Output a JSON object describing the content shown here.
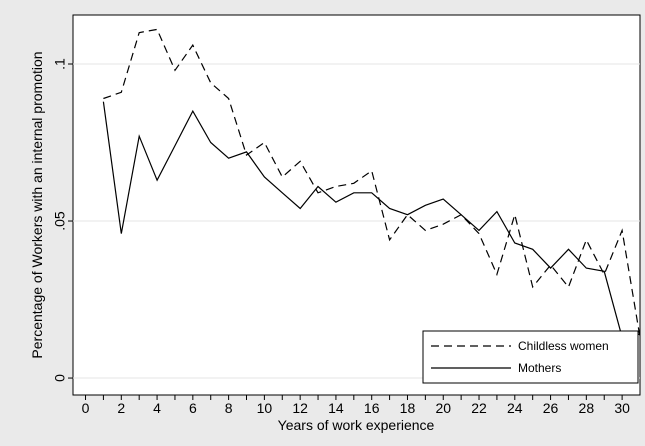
{
  "chart_data": {
    "type": "line",
    "x_label": "Years of work experience",
    "y_label": "Percentage of Workers with an internal promotion",
    "x": [
      1,
      2,
      3,
      4,
      5,
      6,
      7,
      8,
      9,
      10,
      11,
      12,
      13,
      14,
      15,
      16,
      17,
      18,
      19,
      20,
      21,
      22,
      23,
      24,
      25,
      26,
      27,
      28,
      29,
      30,
      31
    ],
    "series": [
      {
        "name": "Childless women",
        "color": "#000000",
        "dash": "dashed",
        "values": [
          0.089,
          0.091,
          0.11,
          0.111,
          0.098,
          0.106,
          0.094,
          0.089,
          0.071,
          0.075,
          0.064,
          0.069,
          0.059,
          0.061,
          0.062,
          0.066,
          0.044,
          0.052,
          0.047,
          0.049,
          0.052,
          0.046,
          0.033,
          0.052,
          0.029,
          0.036,
          0.029,
          0.044,
          0.033,
          0.047,
          0.013
        ]
      },
      {
        "name": "Mothers",
        "color": "#000000",
        "dash": "solid",
        "values": [
          0.088,
          0.046,
          0.077,
          0.063,
          0.074,
          0.085,
          0.075,
          0.07,
          0.072,
          0.064,
          0.059,
          0.054,
          0.061,
          0.056,
          0.059,
          0.059,
          0.054,
          0.052,
          0.055,
          0.057,
          0.052,
          0.047,
          0.053,
          0.043,
          0.041,
          0.035,
          0.041,
          0.035,
          0.034,
          0.013,
          0.014
        ]
      }
    ],
    "xlim": [
      -0.7,
      31
    ],
    "ylim": [
      -0.0054,
      0.1156
    ],
    "xticks": [
      0,
      2,
      4,
      6,
      8,
      10,
      12,
      14,
      16,
      18,
      20,
      22,
      24,
      26,
      28,
      30
    ],
    "xminorticks": [
      1,
      3,
      5,
      7,
      9,
      11,
      13,
      15,
      17,
      19,
      21,
      23,
      25,
      27,
      29
    ],
    "yticks": [
      0,
      {
        "value": 0.05,
        "label": ".05"
      },
      {
        "value": 0.1,
        "label": ".1"
      }
    ],
    "grid": true,
    "legend": "bottom-right"
  }
}
